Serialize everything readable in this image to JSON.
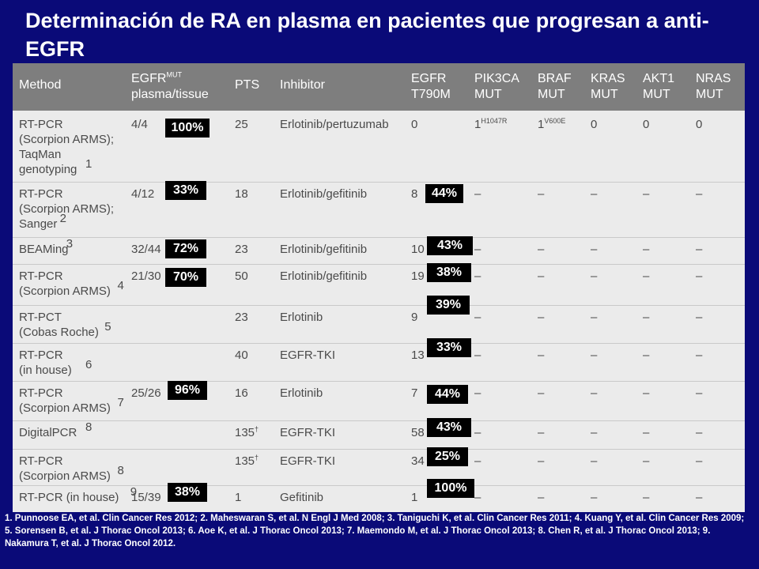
{
  "title": "Determinación de RA en plasma en pacientes que progresan a anti-EGFR",
  "table": {
    "headers": {
      "method": "Method",
      "egfr": "EGFR",
      "egfr_sup": "MUT",
      "egfr_sub": "plasma/tissue",
      "pts": "PTS",
      "inhibitor": "Inhibitor",
      "t790m": "EGFR\nT790M",
      "pik3ca": "PIK3CA\nMUT",
      "braf": "BRAF\nMUT",
      "kras": "KRAS\nMUT",
      "akt1": "AKT1\nMUT",
      "nras": "NRAS\nMUT"
    },
    "rows": [
      {
        "method": "RT-PCR\n(Scorpion ARMS);\nTaqMan\ngenotyping",
        "ref": "1",
        "egfr": "4/4",
        "pts": "25",
        "inhibitor": "Erlotinib/pertuzumab",
        "t790m": "0",
        "pik3ca": "1",
        "pik3ca_sup": "H1047R",
        "braf": "1",
        "braf_sup": "V600E",
        "kras": "0",
        "akt1": "0",
        "nras": "0"
      },
      {
        "method": "RT-PCR\n(Scorpion ARMS);\nSanger",
        "ref": "2",
        "egfr": "4/12",
        "pts": "18",
        "inhibitor": "Erlotinib/gefitinib",
        "t790m": "8",
        "pik3ca": "–",
        "braf": "–",
        "kras": "–",
        "akt1": "–",
        "nras": "–"
      },
      {
        "method": "BEAMing",
        "ref": "3",
        "egfr": "32/44",
        "pts": "23",
        "inhibitor": "Erlotinib/gefitinib",
        "t790m": "10",
        "pik3ca": "–",
        "braf": "–",
        "kras": "–",
        "akt1": "–",
        "nras": "–"
      },
      {
        "method": "RT-PCR\n(Scorpion ARMS)",
        "ref": "4",
        "egfr": "21/30",
        "pts": "50",
        "inhibitor": "Erlotinib/gefitinib",
        "t790m": "19",
        "pik3ca": "–",
        "braf": "–",
        "kras": "–",
        "akt1": "–",
        "nras": "–"
      },
      {
        "method": "RT-PCT\n(Cobas Roche)",
        "ref": "5",
        "egfr": "",
        "pts": "23",
        "inhibitor": "Erlotinib",
        "t790m": "9",
        "pik3ca": "–",
        "braf": "–",
        "kras": "–",
        "akt1": "–",
        "nras": "–"
      },
      {
        "method": "RT-PCR\n(in house)",
        "ref": "6",
        "egfr": "",
        "pts": "40",
        "inhibitor": "EGFR-TKI",
        "t790m": "13",
        "pik3ca": "–",
        "braf": "–",
        "kras": "–",
        "akt1": "–",
        "nras": "–"
      },
      {
        "method": "RT-PCR\n(Scorpion ARMS)",
        "ref": "7",
        "egfr": "25/26",
        "pts": "16",
        "inhibitor": "Erlotinib",
        "t790m": "7",
        "pik3ca": "–",
        "braf": "–",
        "kras": "–",
        "akt1": "–",
        "nras": "–"
      },
      {
        "method": "DigitalPCR",
        "ref": "8",
        "egfr": "",
        "pts": "135",
        "pts_sup": "†",
        "inhibitor": "EGFR-TKI",
        "t790m": "58",
        "pik3ca": "–",
        "braf": "–",
        "kras": "–",
        "akt1": "–",
        "nras": "–"
      },
      {
        "method": "RT-PCR\n(Scorpion ARMS)",
        "ref": "8",
        "egfr": "",
        "pts": "135",
        "pts_sup": "†",
        "inhibitor": "EGFR-TKI",
        "t790m": "34",
        "pik3ca": "–",
        "braf": "–",
        "kras": "–",
        "akt1": "–",
        "nras": "–"
      },
      {
        "method": "RT-PCR (in house)",
        "ref": "9",
        "egfr": "15/39",
        "pts": "1",
        "inhibitor": "Gefitinib",
        "t790m": "1",
        "pik3ca": "–",
        "braf": "–",
        "kras": "–",
        "akt1": "–",
        "nras": "–"
      }
    ]
  },
  "badges_egfr": [
    "100%",
    "33%",
    "72%",
    "70%",
    "96%",
    "38%"
  ],
  "badges_t790m": [
    "44%",
    "43%",
    "38%",
    "39%",
    "33%",
    "44%",
    "43%",
    "25%",
    "100%"
  ],
  "footnote": "1. Punnoose EA, et al. Clin Cancer Res 2012; 2. Maheswaran S, et al. N Engl J Med 2008; 3. Taniguchi K, et al. Clin Cancer Res 2011; 4. Kuang Y, et al. Clin Cancer Res 2009; 5. Sorensen B, et al. J Thorac Oncol 2013; 6. Aoe K, et al. J Thorac Oncol 2013; 7. Maemondo M, et al. J Thorac Oncol 2013; 8. Chen R, et al. J Thorac Oncol 2013; 9. Nakamura T, et al. J Thorac Oncol 2012."
}
